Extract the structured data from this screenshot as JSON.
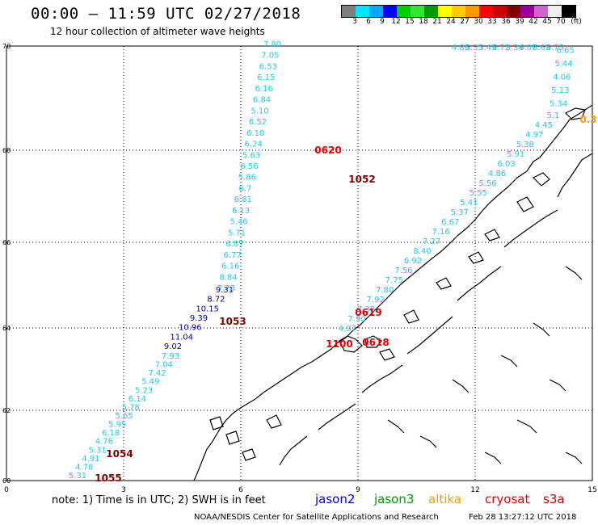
{
  "header": {
    "title": "00:00 – 11:59 UTC 02/27/2018",
    "subtitle": "12 hour collection of altimeter wave heights"
  },
  "colorbar": {
    "colors": [
      "#7f7f7f",
      "#00e5ff",
      "#00a8ff",
      "#0000ff",
      "#00d000",
      "#33e633",
      "#009900",
      "#ffff00",
      "#ffcc00",
      "#ff9900",
      "#ff0000",
      "#cc0000",
      "#800000",
      "#990099",
      "#cc66cc",
      "#eeeeee",
      "#000000"
    ],
    "labels": [
      "3",
      "6",
      "9",
      "12",
      "15",
      "18",
      "21",
      "24",
      "27",
      "30",
      "33",
      "36",
      "39",
      "42",
      "45",
      "70",
      "(ft)"
    ]
  },
  "axes": {
    "lat_labels": [
      "70",
      "68",
      "66",
      "64",
      "62",
      "60"
    ],
    "lon_labels": [
      "0",
      "3",
      "6",
      "9",
      "12",
      "15"
    ]
  },
  "tracks": [
    {
      "name": "track-east-1052",
      "color": "#22c8e6",
      "labels": [
        "4.85",
        "6.35",
        "5.45",
        "6.72",
        "5.34",
        "6.07",
        "6.65",
        "6.75",
        "6.65",
        "5.44",
        "4.06",
        "5.13",
        "5.34",
        "5.1",
        "4.45",
        "4.97",
        "5.38",
        "5.91",
        "6.03",
        "4.86",
        "5.56",
        "5.55",
        "5.41",
        "5.37",
        "6.67",
        "7.16",
        "7.27",
        "8.40",
        "6.92",
        "7.56",
        "7.75",
        "7.80",
        "7.92",
        "7.38",
        "7.90",
        "4.97"
      ]
    },
    {
      "name": "track-north-0620",
      "color": "#22c8e6",
      "labels": [
        "7.80",
        "7.05",
        "6.53",
        "6.15",
        "6.16",
        "6.84",
        "5.10",
        "6.52",
        "6.10",
        "6.24",
        "5.63",
        "6.56",
        "5.86",
        "6.7",
        "6.81",
        "6.13",
        "5.46",
        "5.71",
        "6.87",
        "6.77",
        "6.16",
        "8.84",
        "7.73"
      ]
    },
    {
      "name": "track-blue",
      "color": "#0000aa",
      "labels": [
        "9.31",
        "8.72",
        "10.15",
        "9.39",
        "10.96",
        "11.04",
        "9.02"
      ]
    },
    {
      "name": "track-south",
      "color": "#22c8e6",
      "labels": [
        "7.93",
        "7.04",
        "7.42",
        "5.49",
        "5.23",
        "6.14",
        "5.78",
        "5.65",
        "5.95",
        "6.18",
        "4.76",
        "5.31",
        "4.91",
        "4.78",
        "5.31"
      ]
    }
  ],
  "pass_labels": [
    {
      "text": "0620",
      "color": "#e00000"
    },
    {
      "text": "1052",
      "color": "#800000"
    },
    {
      "text": "1053",
      "color": "#800000"
    },
    {
      "text": "0619",
      "color": "#e00000"
    },
    {
      "text": "0618",
      "color": "#e00000"
    },
    {
      "text": "1100",
      "color": "#e00000"
    },
    {
      "text": "1054",
      "color": "#800000"
    },
    {
      "text": "1055",
      "color": "#800000"
    },
    {
      "text": "0.3",
      "color": "#ff9900"
    }
  ],
  "footer": {
    "note": "note:  1) Time is in UTC;  2) SWH is in feet",
    "satellites": [
      {
        "name": "jason2",
        "color": "#0000ee"
      },
      {
        "name": "jason3",
        "color": "#009900"
      },
      {
        "name": "altika",
        "color": "#ff9900"
      },
      {
        "name": "cryosat",
        "color": "#ee0000"
      },
      {
        "name": "s3a",
        "color": "#cc0000"
      }
    ],
    "credit": "NOAA/NESDIS Center for Satellite Applications and Research",
    "timestamp": "Feb 28 13:27:12 UTC 2018"
  }
}
